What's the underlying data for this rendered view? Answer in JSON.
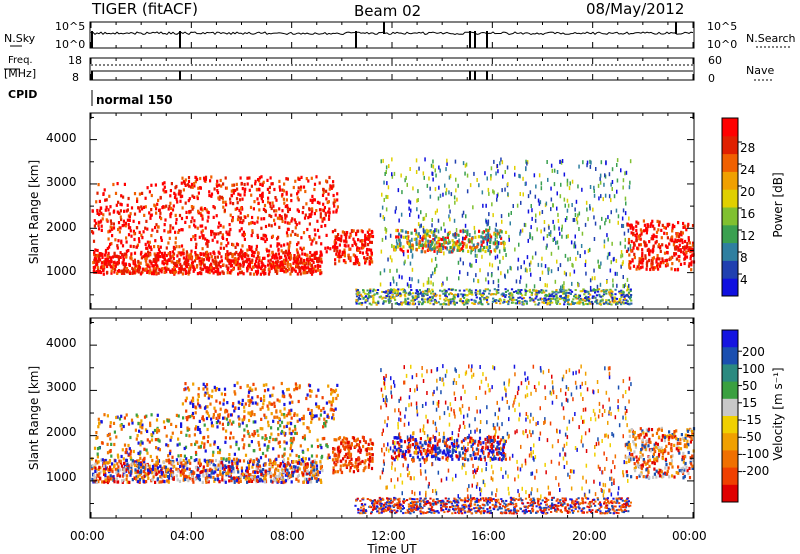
{
  "header": {
    "station": "TIGER (fitACF)",
    "beam": "Beam 02",
    "date": "08/May/2012"
  },
  "top_panels": {
    "nsky_label": "N.Sky",
    "nsky_ticks": [
      "10^5",
      "10^0"
    ],
    "nsearch_label": "N.Search",
    "nsearch_ticks": [
      "10^5",
      "10^0"
    ],
    "freq_label": "Freq.",
    "freq_unit": "[MHz]",
    "freq_ticks": [
      "18",
      "8"
    ],
    "nave_label": "Nave",
    "nave_ticks": [
      "60",
      "0"
    ],
    "cpid_label": "CPID",
    "cpid_value": "normal 150"
  },
  "chart_data": [
    {
      "type": "heatmap",
      "panel": "power",
      "ylabel": "Slant Range [km]",
      "yticks": [
        "1000",
        "2000",
        "3000",
        "4000"
      ],
      "ylim": [
        180,
        4600
      ],
      "xlim_hours": [
        0,
        24
      ],
      "colorbar": {
        "label": "Power [dB]",
        "ticks": [
          "4",
          "8",
          "12",
          "16",
          "20",
          "24",
          "28"
        ],
        "range": [
          0,
          32
        ],
        "colors": [
          "#1010e0",
          "#2040b0",
          "#2f7fa0",
          "#3aa050",
          "#80c030",
          "#e0d000",
          "#f0a000",
          "#f06000",
          "#e02000",
          "#ff0000"
        ]
      }
    },
    {
      "type": "heatmap",
      "panel": "velocity",
      "ylabel": "Slant Range [km]",
      "yticks": [
        "1000",
        "2000",
        "3000",
        "4000"
      ],
      "ylim": [
        180,
        4600
      ],
      "xlim_hours": [
        0,
        24
      ],
      "colorbar": {
        "label": "Velocity [m s⁻¹]",
        "ticks": [
          "200",
          "100",
          "50",
          "15",
          "-15",
          "-50",
          "-100",
          "-200"
        ],
        "colors": [
          "#1515e0",
          "#1a4fb0",
          "#2b8a80",
          "#3aa040",
          "#c8c8c8",
          "#f0d000",
          "#f0a000",
          "#f07000",
          "#f04000",
          "#e00000"
        ]
      }
    }
  ],
  "xaxis": {
    "label": "Time UT",
    "ticks": [
      "00:00",
      "04:00",
      "08:00",
      "12:00",
      "16:00",
      "20:00",
      "00:00"
    ]
  }
}
